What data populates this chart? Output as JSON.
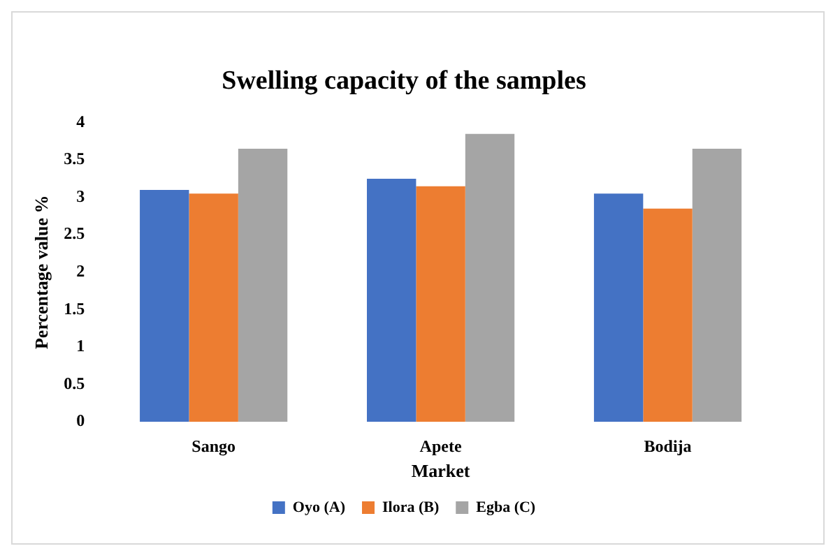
{
  "chart_data": {
    "type": "bar",
    "title": "Swelling capacity of the samples",
    "xlabel": "Market",
    "ylabel": "Percentage value %",
    "categories": [
      "Sango",
      "Apete",
      "Bodija"
    ],
    "series": [
      {
        "name": "Oyo (A)",
        "color": "#4472c4",
        "values": [
          3.1,
          3.25,
          3.05
        ]
      },
      {
        "name": "Ilora (B)",
        "color": "#ed7d31",
        "values": [
          3.05,
          3.15,
          2.85
        ]
      },
      {
        "name": "Egba (C)",
        "color": "#a5a5a5",
        "values": [
          3.65,
          3.85,
          3.65
        ]
      }
    ],
    "ylim": [
      0,
      4
    ],
    "yticks": [
      0,
      0.5,
      1,
      1.5,
      2,
      2.5,
      3,
      3.5,
      4
    ],
    "grid": false,
    "legend": "bottom"
  }
}
